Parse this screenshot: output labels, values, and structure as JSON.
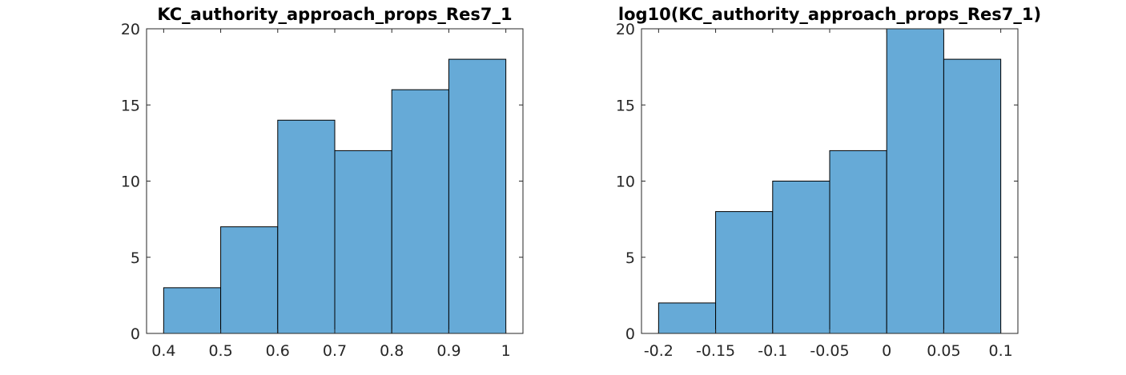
{
  "chart_data": [
    {
      "type": "histogram",
      "title": "KC_authority_approach_props_Res7_1",
      "xlabel": "",
      "ylabel": "",
      "bin_edges": [
        0.4,
        0.5,
        0.6,
        0.7,
        0.8,
        0.9,
        1.0
      ],
      "values": [
        3,
        7,
        14,
        12,
        16,
        18
      ],
      "xlim": [
        0.37,
        1.03
      ],
      "ylim": [
        0,
        20
      ],
      "xticks": [
        0.4,
        0.5,
        0.6,
        0.7,
        0.8,
        0.9,
        1.0
      ],
      "xtick_labels": [
        "0.4",
        "0.5",
        "0.6",
        "0.7",
        "0.8",
        "0.9",
        "1"
      ],
      "yticks": [
        0,
        5,
        10,
        15,
        20
      ],
      "ytick_labels": [
        "0",
        "5",
        "10",
        "15",
        "20"
      ],
      "bar_color": "#66aad7",
      "edge_color": "#000000",
      "grid": false
    },
    {
      "type": "histogram",
      "title": "log10(KC_authority_approach_props_Res7_1)",
      "xlabel": "",
      "ylabel": "",
      "bin_edges": [
        -0.2,
        -0.15,
        -0.1,
        -0.05,
        0.0,
        0.05,
        0.1
      ],
      "values": [
        2,
        8,
        10,
        12,
        20,
        18
      ],
      "xlim": [
        -0.215,
        0.115
      ],
      "ylim": [
        0,
        20
      ],
      "xticks": [
        -0.2,
        -0.15,
        -0.1,
        -0.05,
        0,
        0.05,
        0.1
      ],
      "xtick_labels": [
        "-0.2",
        "-0.15",
        "-0.1",
        "-0.05",
        "0",
        "0.05",
        "0.1"
      ],
      "yticks": [
        0,
        5,
        10,
        15,
        20
      ],
      "ytick_labels": [
        "0",
        "5",
        "10",
        "15",
        "20"
      ],
      "bar_color": "#66aad7",
      "edge_color": "#000000",
      "grid": false
    }
  ]
}
